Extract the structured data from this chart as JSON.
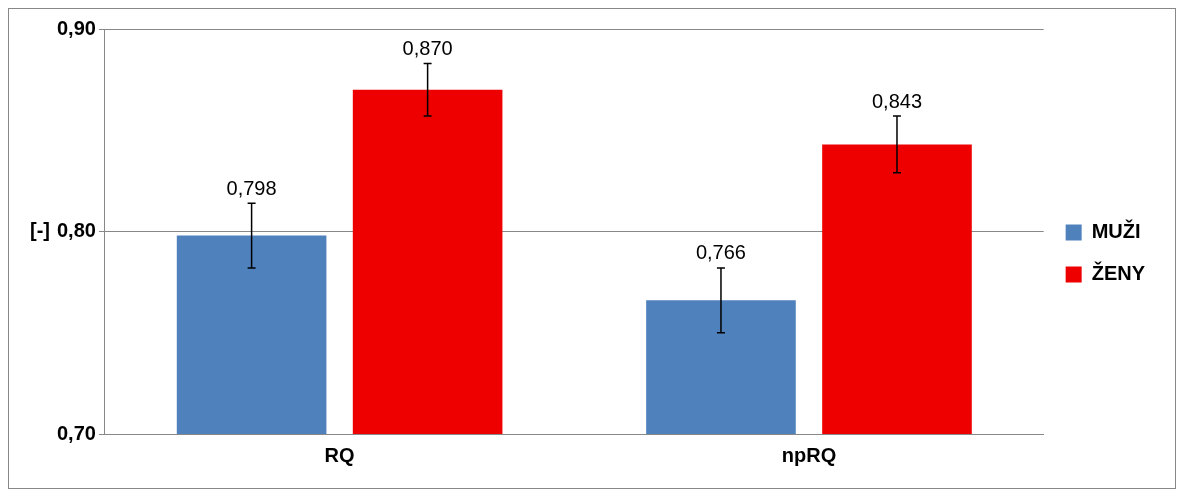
{
  "chart_data": {
    "type": "bar",
    "ylabel": "[-]",
    "categories": [
      "RQ",
      "npRQ"
    ],
    "series": [
      {
        "name": "MUŽI",
        "color": "#4f81bd",
        "values": [
          0.798,
          0.766
        ],
        "errors": [
          0.016,
          0.016
        ],
        "value_labels": [
          "0,798",
          "0,766"
        ]
      },
      {
        "name": "ŽENY",
        "color": "#ee0000",
        "values": [
          0.87,
          0.843
        ],
        "errors": [
          0.013,
          0.014
        ],
        "value_labels": [
          "0,870",
          "0,843"
        ]
      }
    ],
    "ylim": [
      0.7,
      0.9
    ],
    "yticks": [
      {
        "value": 0.7,
        "label": "0,70"
      },
      {
        "value": 0.8,
        "label": "0,80"
      },
      {
        "value": 0.9,
        "label": "0,90"
      }
    ],
    "grid": "y",
    "legend": "right"
  }
}
